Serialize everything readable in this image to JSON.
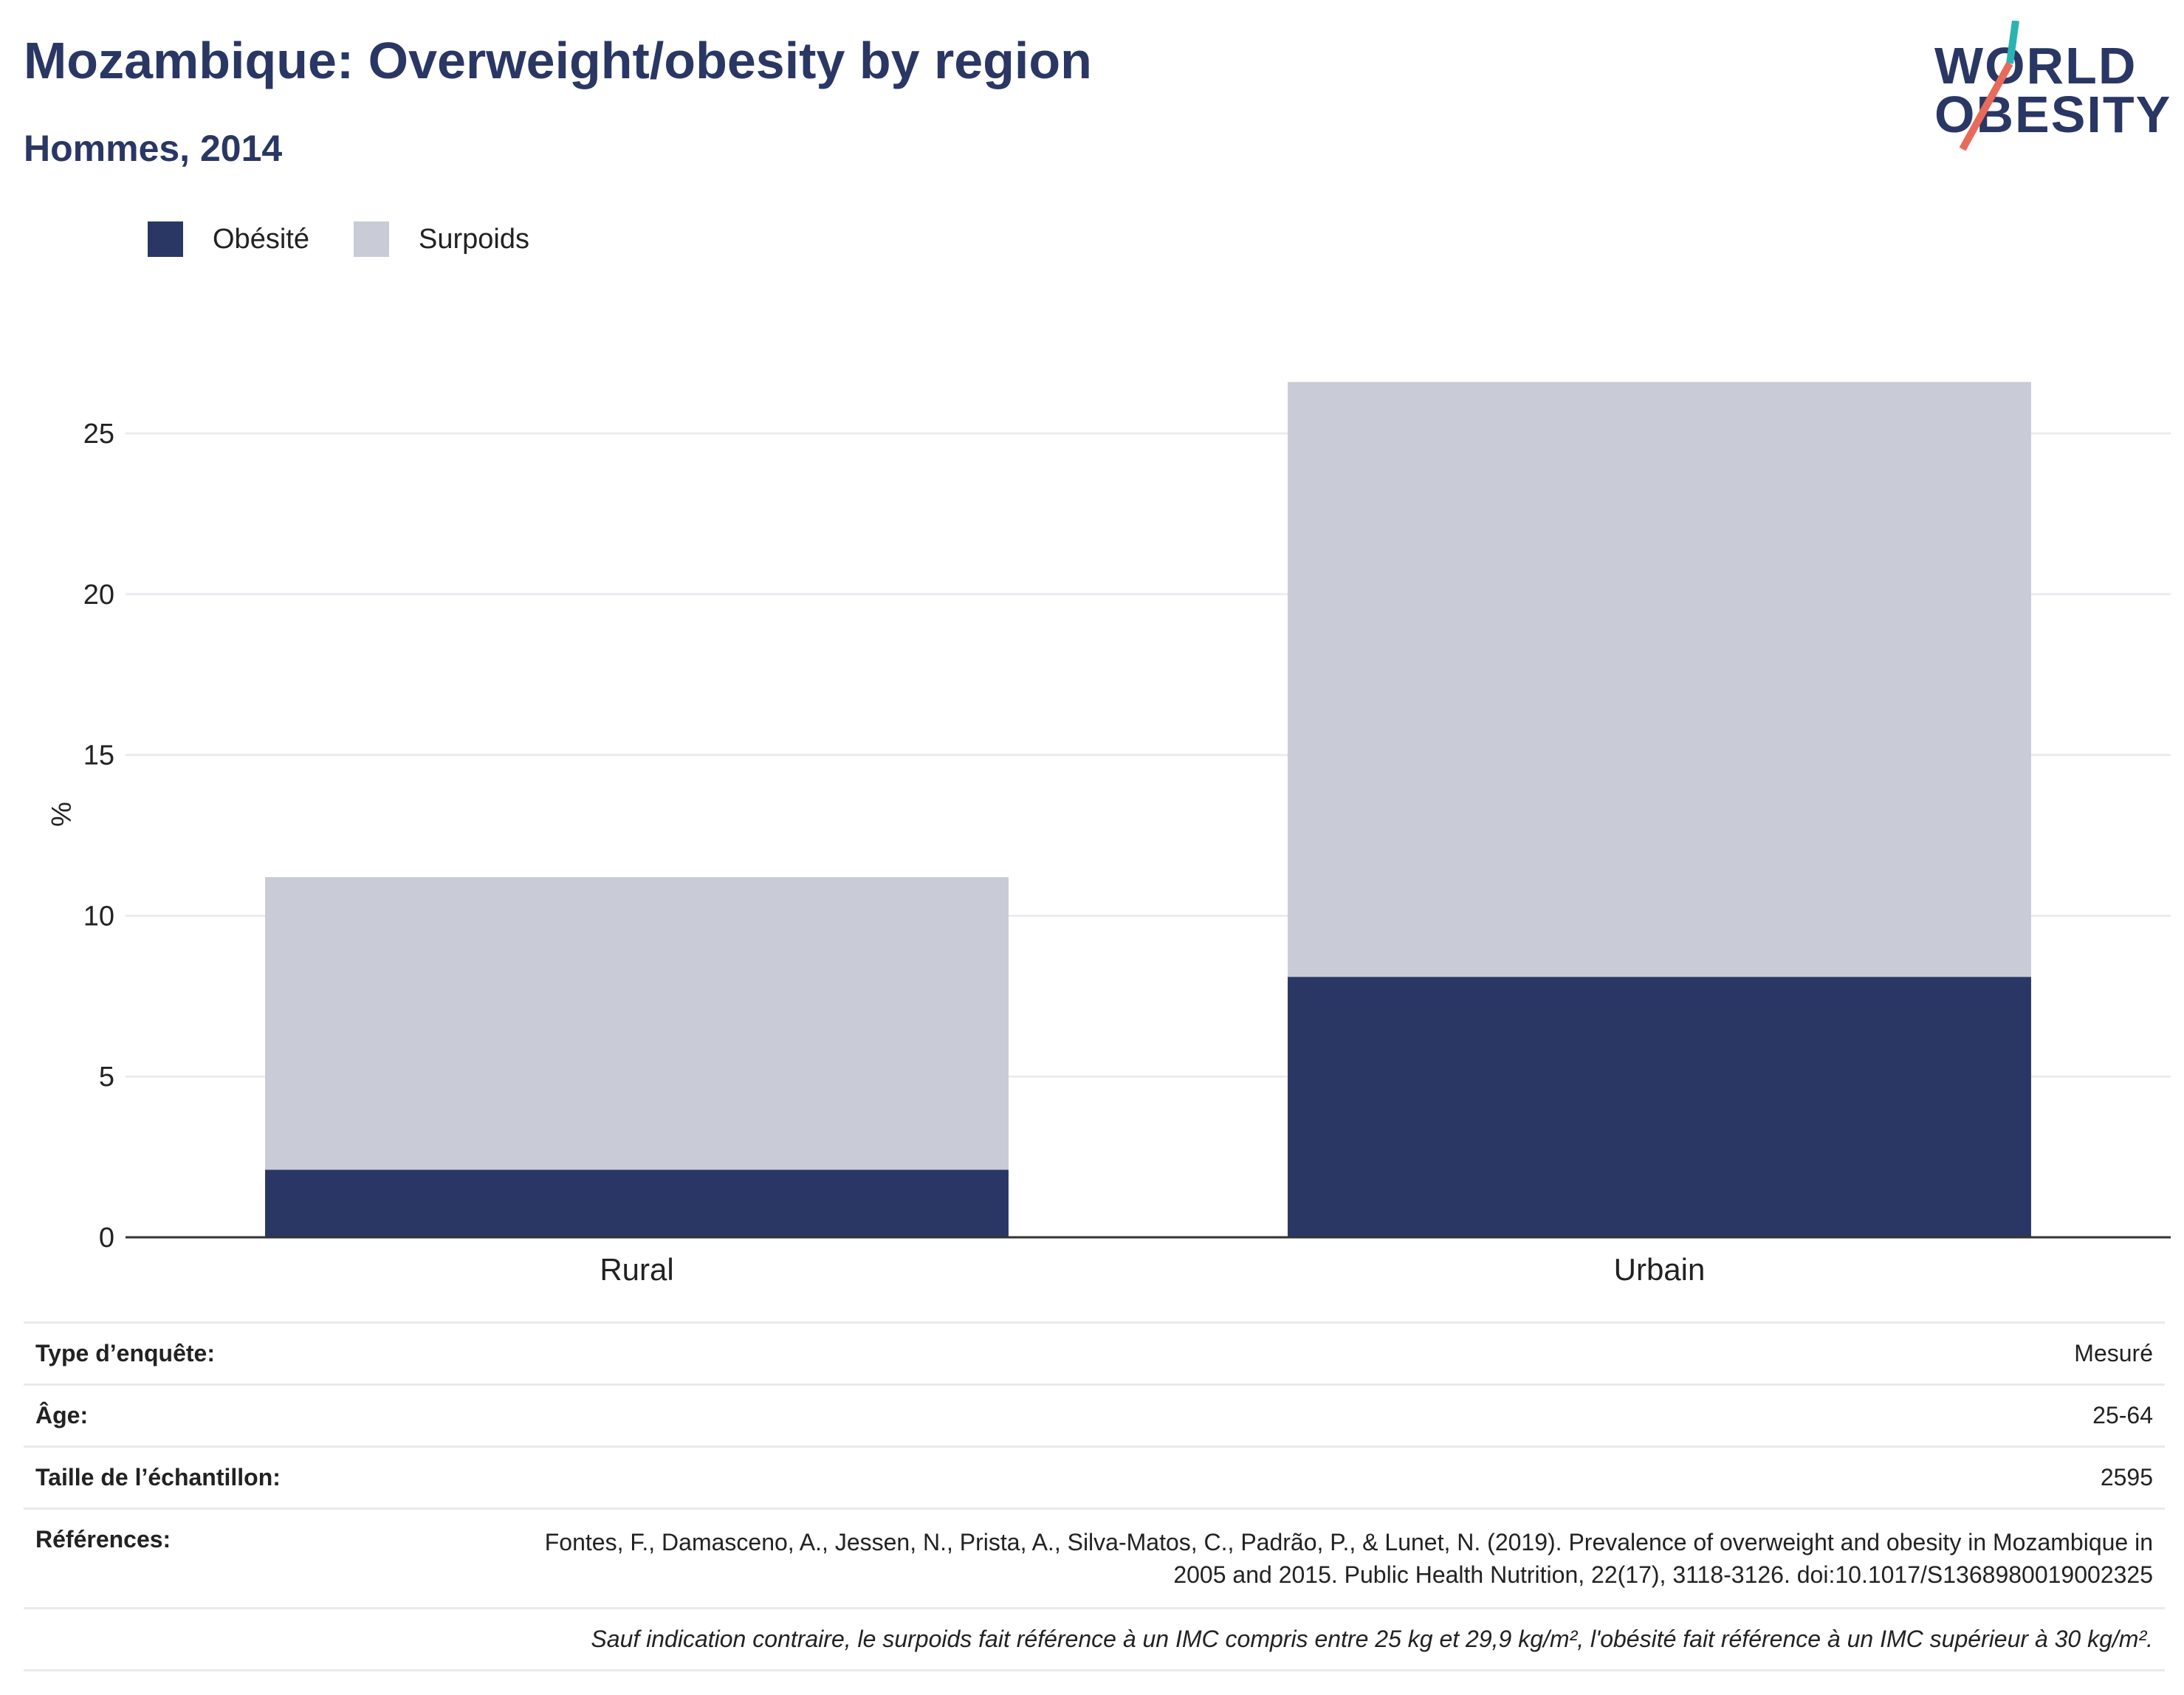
{
  "title": "Mozambique: Overweight/obesity by region",
  "subtitle": "Hommes, 2014",
  "logo": {
    "line1": "WORLD",
    "line2": "OBESITY"
  },
  "colors": {
    "obesity": "#2a3764",
    "overweight": "#c9cbd6",
    "title": "#2a3764"
  },
  "chart_data": {
    "type": "bar",
    "stacked": true,
    "categories": [
      "Rural",
      "Urbain"
    ],
    "series": [
      {
        "name": "Obésité",
        "values": [
          2.1,
          8.1
        ]
      },
      {
        "name": "Surpoids",
        "values": [
          9.1,
          18.5
        ]
      }
    ],
    "ylabel": "%",
    "xlabel": "",
    "ylim": [
      0,
      27
    ],
    "yticks": [
      0,
      5,
      10,
      15,
      20,
      25
    ],
    "grid": true,
    "legend_position": "top-left"
  },
  "meta": {
    "survey_type_label": "Type d’enquête:",
    "survey_type_value": "Mesuré",
    "age_label": "Âge:",
    "age_value": "25-64",
    "sample_label": "Taille de l’échantillon:",
    "sample_value": "2595",
    "references_label": "Références:",
    "references_value": "Fontes, F., Damasceno, A., Jessen, N., Prista, A., Silva-Matos, C., Padrão, P., & Lunet, N. (2019). Prevalence of overweight and obesity in Mozambique in 2005 and 2015. Public Health Nutrition, 22(17), 3118-3126. doi:10.1017/S1368980019002325",
    "note": "Sauf indication contraire, le surpoids fait référence à un IMC compris entre 25 kg et 29,9 kg/m², l'obésité fait référence à un IMC supérieur à 30 kg/m²."
  }
}
